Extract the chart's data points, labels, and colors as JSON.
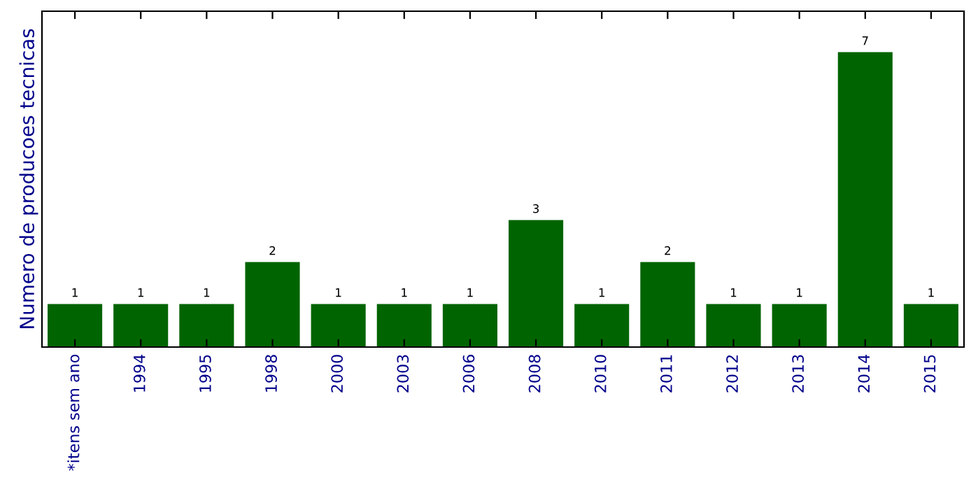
{
  "chart_data": {
    "type": "bar",
    "ylabel": "Numero de producoes tecnicas",
    "categories": [
      "*itens sem ano",
      "1994",
      "1995",
      "1998",
      "2000",
      "2003",
      "2006",
      "2008",
      "2010",
      "2011",
      "2012",
      "2013",
      "2014",
      "2015"
    ],
    "values": [
      1,
      1,
      1,
      2,
      1,
      1,
      1,
      3,
      1,
      2,
      1,
      1,
      7,
      1
    ],
    "color": "#006400",
    "ylim": [
      0,
      8
    ],
    "data_labels": true,
    "tick_labels": "x",
    "grid": false,
    "legend": false
  }
}
